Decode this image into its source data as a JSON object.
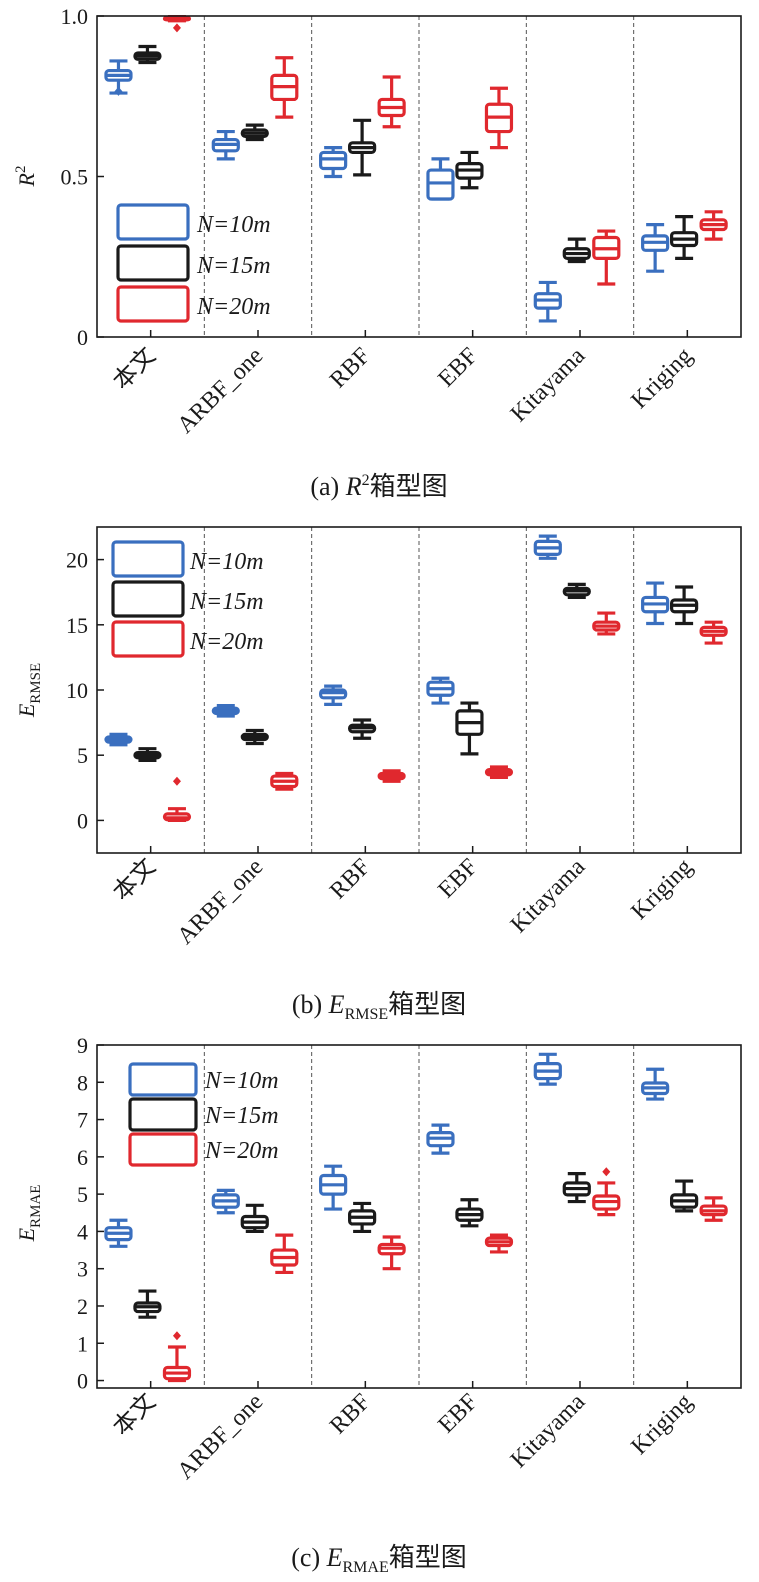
{
  "colors": {
    "n10": "#3a6fbf",
    "n15": "#1a1a1a",
    "n20": "#e0282e"
  },
  "legend": [
    {
      "key": "n10",
      "label": "N=10m"
    },
    {
      "key": "n15",
      "label": "N=15m"
    },
    {
      "key": "n20",
      "label": "N=20m"
    }
  ],
  "chart_data": [
    {
      "type": "box",
      "caption_prefix": "(a) ",
      "caption_symbol": "R",
      "caption_sup": "2",
      "caption_sub": "",
      "caption_suffix": "箱型图",
      "ylabel_main": "R",
      "ylabel_sup": "2",
      "ylabel_sub": "",
      "ylim": [
        0,
        1.0
      ],
      "yticks": [
        0,
        0.5,
        1.0
      ],
      "ytick_labels": [
        "0",
        "0.5",
        "1.0"
      ],
      "categories": [
        "本文",
        "ARBF_one",
        "RBF",
        "EBF",
        "Kitayama",
        "Kriging"
      ],
      "series": [
        {
          "name": "N=10m",
          "key": "n10",
          "boxes": [
            {
              "min": 0.76,
              "q1": 0.8,
              "med": 0.815,
              "q3": 0.83,
              "max": 0.86,
              "outliers": [
                0.765
              ]
            },
            {
              "min": 0.555,
              "q1": 0.58,
              "med": 0.6,
              "q3": 0.615,
              "max": 0.64,
              "outliers": []
            },
            {
              "min": 0.5,
              "q1": 0.525,
              "med": 0.555,
              "q3": 0.575,
              "max": 0.59,
              "outliers": []
            },
            {
              "min": 0.43,
              "q1": 0.43,
              "med": 0.48,
              "q3": 0.52,
              "max": 0.555,
              "outliers": []
            },
            {
              "min": 0.05,
              "q1": 0.09,
              "med": 0.115,
              "q3": 0.135,
              "max": 0.17,
              "outliers": []
            },
            {
              "min": 0.205,
              "q1": 0.27,
              "med": 0.295,
              "q3": 0.315,
              "max": 0.35,
              "outliers": []
            }
          ]
        },
        {
          "name": "N=15m",
          "key": "n15",
          "boxes": [
            {
              "min": 0.855,
              "q1": 0.865,
              "med": 0.875,
              "q3": 0.885,
              "max": 0.905,
              "outliers": []
            },
            {
              "min": 0.615,
              "q1": 0.625,
              "med": 0.635,
              "q3": 0.645,
              "max": 0.66,
              "outliers": []
            },
            {
              "min": 0.505,
              "q1": 0.575,
              "med": 0.59,
              "q3": 0.605,
              "max": 0.675,
              "outliers": []
            },
            {
              "min": 0.465,
              "q1": 0.495,
              "med": 0.52,
              "q3": 0.54,
              "max": 0.575,
              "outliers": []
            },
            {
              "min": 0.235,
              "q1": 0.245,
              "med": 0.26,
              "q3": 0.275,
              "max": 0.305,
              "outliers": []
            },
            {
              "min": 0.245,
              "q1": 0.285,
              "med": 0.305,
              "q3": 0.325,
              "max": 0.375,
              "outliers": []
            }
          ]
        },
        {
          "name": "N=20m",
          "key": "n20",
          "boxes": [
            {
              "min": 0.985,
              "q1": 0.988,
              "med": 0.99,
              "q3": 0.995,
              "max": 0.998,
              "outliers": [
                0.963
              ]
            },
            {
              "min": 0.685,
              "q1": 0.74,
              "med": 0.78,
              "q3": 0.815,
              "max": 0.87,
              "outliers": []
            },
            {
              "min": 0.655,
              "q1": 0.69,
              "med": 0.715,
              "q3": 0.74,
              "max": 0.81,
              "outliers": []
            },
            {
              "min": 0.59,
              "q1": 0.64,
              "med": 0.685,
              "q3": 0.725,
              "max": 0.775,
              "outliers": []
            },
            {
              "min": 0.165,
              "q1": 0.245,
              "med": 0.275,
              "q3": 0.31,
              "max": 0.33,
              "outliers": []
            },
            {
              "min": 0.305,
              "q1": 0.335,
              "med": 0.35,
              "q3": 0.365,
              "max": 0.39,
              "outliers": []
            }
          ]
        }
      ]
    },
    {
      "type": "box",
      "caption_prefix": "(b) ",
      "caption_symbol": "E",
      "caption_sup": "",
      "caption_sub": "RMSE",
      "caption_suffix": "箱型图",
      "ylabel_main": "E",
      "ylabel_sup": "",
      "ylabel_sub": "RMSE",
      "ylim": [
        -2.5,
        22.5
      ],
      "yticks": [
        0,
        5,
        10,
        15,
        20
      ],
      "ytick_labels": [
        "0",
        "5",
        "10",
        "15",
        "20"
      ],
      "categories": [
        "本文",
        "ARBF_one",
        "RBF",
        "EBF",
        "Kitayama",
        "Kriging"
      ],
      "series": [
        {
          "name": "N=10m",
          "key": "n10",
          "boxes": [
            {
              "min": 5.8,
              "q1": 6.0,
              "med": 6.2,
              "q3": 6.4,
              "max": 6.6,
              "outliers": []
            },
            {
              "min": 8.0,
              "q1": 8.2,
              "med": 8.4,
              "q3": 8.6,
              "max": 8.8,
              "outliers": []
            },
            {
              "min": 8.9,
              "q1": 9.4,
              "med": 9.8,
              "q3": 10.0,
              "max": 10.3,
              "outliers": []
            },
            {
              "min": 9.0,
              "q1": 9.6,
              "med": 10.1,
              "q3": 10.6,
              "max": 10.9,
              "outliers": []
            },
            {
              "min": 20.1,
              "q1": 20.4,
              "med": 20.9,
              "q3": 21.4,
              "max": 21.8,
              "outliers": []
            },
            {
              "min": 15.1,
              "q1": 16.0,
              "med": 16.6,
              "q3": 17.1,
              "max": 18.2,
              "outliers": []
            }
          ]
        },
        {
          "name": "N=15m",
          "key": "n15",
          "boxes": [
            {
              "min": 4.6,
              "q1": 4.8,
              "med": 5.0,
              "q3": 5.2,
              "max": 5.5,
              "outliers": []
            },
            {
              "min": 5.9,
              "q1": 6.2,
              "med": 6.4,
              "q3": 6.6,
              "max": 6.9,
              "outliers": []
            },
            {
              "min": 6.3,
              "q1": 6.8,
              "med": 7.1,
              "q3": 7.3,
              "max": 7.7,
              "outliers": []
            },
            {
              "min": 5.1,
              "q1": 6.6,
              "med": 7.5,
              "q3": 8.4,
              "max": 9.0,
              "outliers": []
            },
            {
              "min": 17.1,
              "q1": 17.3,
              "med": 17.6,
              "q3": 17.8,
              "max": 18.1,
              "outliers": []
            },
            {
              "min": 15.1,
              "q1": 16.0,
              "med": 16.5,
              "q3": 16.9,
              "max": 17.9,
              "outliers": []
            }
          ]
        },
        {
          "name": "N=20m",
          "key": "n20",
          "boxes": [
            {
              "min": 0.0,
              "q1": 0.05,
              "med": 0.2,
              "q3": 0.5,
              "max": 0.9,
              "outliers": [
                3.0
              ]
            },
            {
              "min": 2.4,
              "q1": 2.6,
              "med": 3.0,
              "q3": 3.4,
              "max": 3.6,
              "outliers": []
            },
            {
              "min": 3.0,
              "q1": 3.2,
              "med": 3.4,
              "q3": 3.6,
              "max": 3.8,
              "outliers": []
            },
            {
              "min": 3.3,
              "q1": 3.5,
              "med": 3.7,
              "q3": 3.9,
              "max": 4.1,
              "outliers": []
            },
            {
              "min": 14.3,
              "q1": 14.6,
              "med": 14.9,
              "q3": 15.2,
              "max": 15.9,
              "outliers": []
            },
            {
              "min": 13.6,
              "q1": 14.2,
              "med": 14.5,
              "q3": 14.8,
              "max": 15.2,
              "outliers": []
            }
          ]
        }
      ]
    },
    {
      "type": "box",
      "caption_prefix": "(c) ",
      "caption_symbol": "E",
      "caption_sup": "",
      "caption_sub": "RMAE",
      "caption_suffix": "箱型图",
      "ylabel_main": "E",
      "ylabel_sup": "",
      "ylabel_sub": "RMAE",
      "ylim": [
        -0.2,
        9.0
      ],
      "yticks": [
        0,
        1,
        2,
        3,
        4,
        5,
        6,
        7,
        8,
        9
      ],
      "ytick_labels": [
        "0",
        "1",
        "2",
        "3",
        "4",
        "5",
        "6",
        "7",
        "8",
        "9"
      ],
      "categories": [
        "本文",
        "ARBF_one",
        "RBF",
        "EBF",
        "Kitayama",
        "Kriging"
      ],
      "series": [
        {
          "name": "N=10m",
          "key": "n10",
          "boxes": [
            {
              "min": 3.6,
              "q1": 3.78,
              "med": 3.95,
              "q3": 4.1,
              "max": 4.3,
              "outliers": []
            },
            {
              "min": 4.5,
              "q1": 4.65,
              "med": 4.82,
              "q3": 4.98,
              "max": 5.1,
              "outliers": []
            },
            {
              "min": 4.6,
              "q1": 5.0,
              "med": 5.25,
              "q3": 5.5,
              "max": 5.75,
              "outliers": []
            },
            {
              "min": 6.1,
              "q1": 6.3,
              "med": 6.5,
              "q3": 6.65,
              "max": 6.85,
              "outliers": []
            },
            {
              "min": 7.95,
              "q1": 8.1,
              "med": 8.3,
              "q3": 8.5,
              "max": 8.75,
              "outliers": []
            },
            {
              "min": 7.55,
              "q1": 7.7,
              "med": 7.85,
              "q3": 7.98,
              "max": 8.35,
              "outliers": []
            }
          ]
        },
        {
          "name": "N=15m",
          "key": "n15",
          "boxes": [
            {
              "min": 1.7,
              "q1": 1.85,
              "med": 1.98,
              "q3": 2.08,
              "max": 2.4,
              "outliers": []
            },
            {
              "min": 4.0,
              "q1": 4.1,
              "med": 4.25,
              "q3": 4.4,
              "max": 4.7,
              "outliers": []
            },
            {
              "min": 4.0,
              "q1": 4.2,
              "med": 4.38,
              "q3": 4.55,
              "max": 4.75,
              "outliers": []
            },
            {
              "min": 4.15,
              "q1": 4.3,
              "med": 4.45,
              "q3": 4.6,
              "max": 4.85,
              "outliers": []
            },
            {
              "min": 4.8,
              "q1": 4.98,
              "med": 5.15,
              "q3": 5.3,
              "max": 5.55,
              "outliers": []
            },
            {
              "min": 4.55,
              "q1": 4.65,
              "med": 4.82,
              "q3": 4.98,
              "max": 5.35,
              "outliers": []
            }
          ]
        },
        {
          "name": "N=20m",
          "key": "n20",
          "boxes": [
            {
              "min": 0.0,
              "q1": 0.05,
              "med": 0.2,
              "q3": 0.35,
              "max": 0.9,
              "outliers": [
                1.2
              ]
            },
            {
              "min": 2.9,
              "q1": 3.1,
              "med": 3.3,
              "q3": 3.5,
              "max": 3.9,
              "outliers": []
            },
            {
              "min": 3.0,
              "q1": 3.4,
              "med": 3.55,
              "q3": 3.65,
              "max": 3.85,
              "outliers": []
            },
            {
              "min": 3.45,
              "q1": 3.62,
              "med": 3.72,
              "q3": 3.82,
              "max": 3.9,
              "outliers": []
            },
            {
              "min": 4.45,
              "q1": 4.6,
              "med": 4.8,
              "q3": 4.95,
              "max": 5.3,
              "outliers": [
                5.6
              ]
            },
            {
              "min": 4.3,
              "q1": 4.45,
              "med": 4.55,
              "q3": 4.68,
              "max": 4.9,
              "outliers": []
            }
          ]
        }
      ]
    }
  ]
}
